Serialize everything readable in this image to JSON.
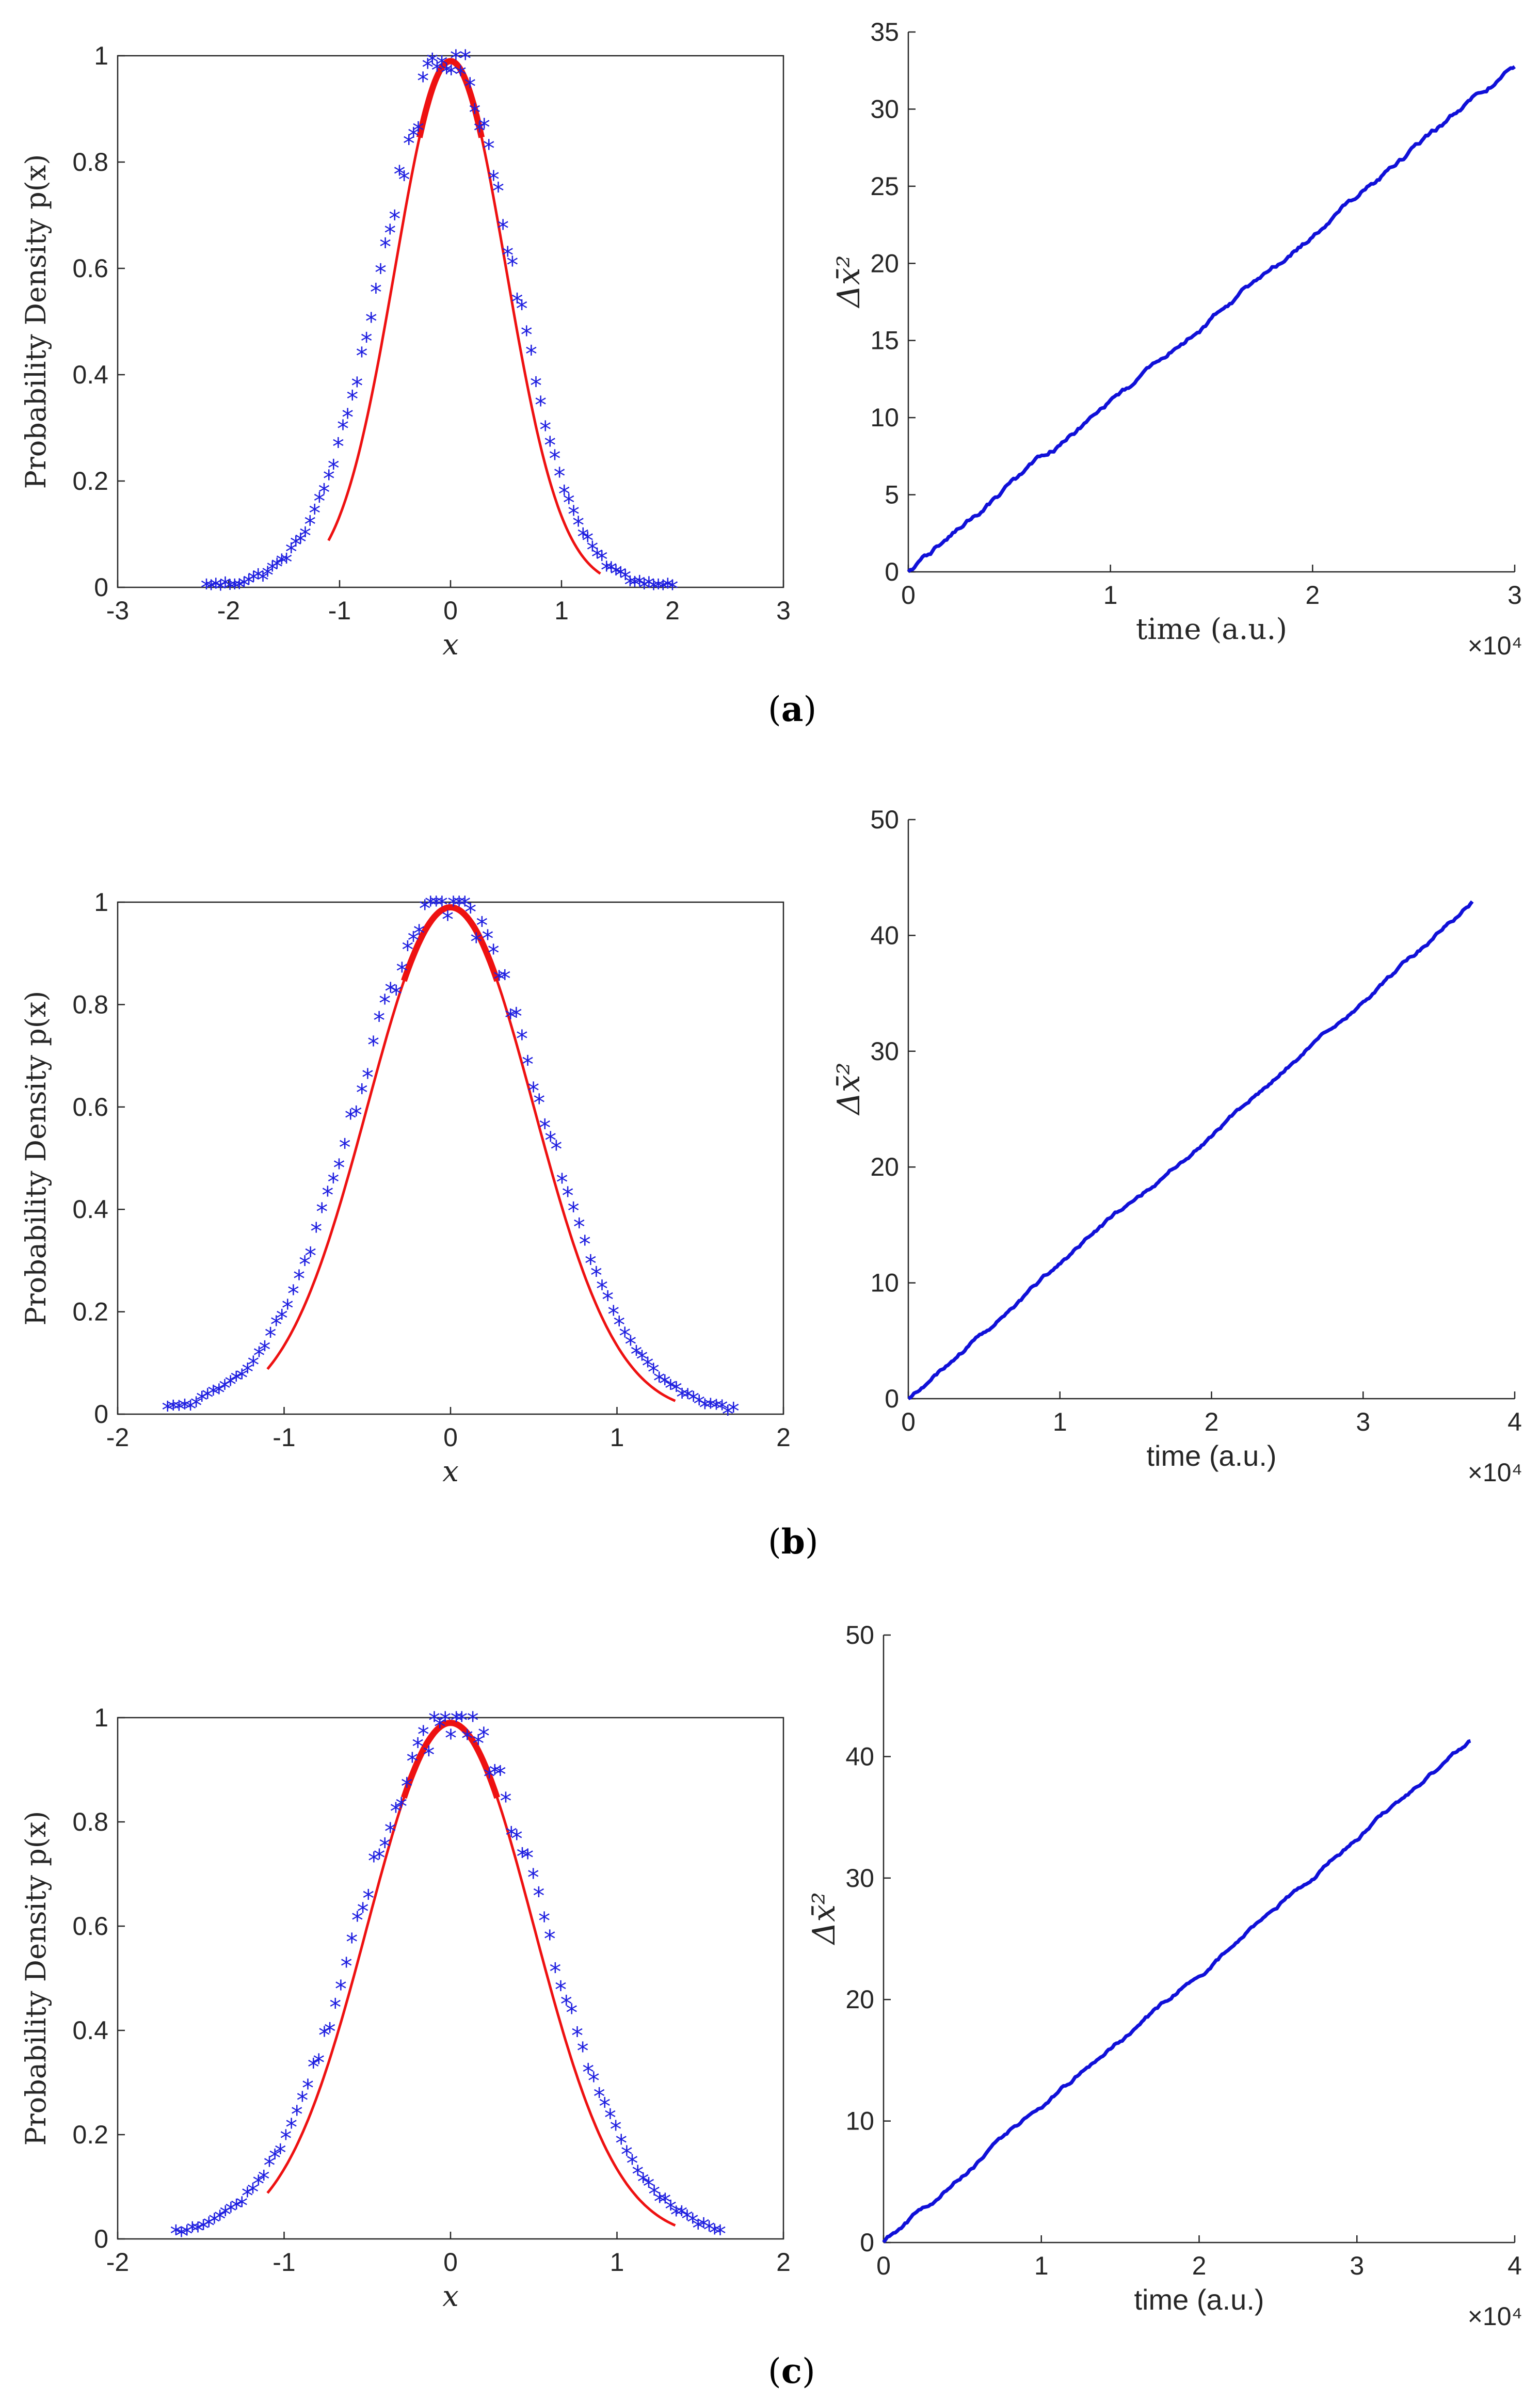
{
  "figure": {
    "captions": [
      "a",
      "b",
      "c"
    ],
    "colors": {
      "series_points": "#1f1fe0",
      "fit_curve": "#ee1111",
      "msd_line": "#1010d8",
      "axis": "#262626"
    }
  },
  "chart_data": [
    {
      "panel": "a",
      "type": "scatter",
      "title": "",
      "xlabel": "x",
      "ylabel": "Probability Density p(x)",
      "xlim": [
        -3,
        3
      ],
      "ylim": [
        0,
        1
      ],
      "xticks": [
        -3,
        -2,
        -1,
        0,
        1,
        2,
        3
      ],
      "yticks": [
        0,
        0.2,
        0.4,
        0.6,
        0.8,
        1
      ],
      "xtick_labels": [
        "-3",
        "-2",
        "-1",
        "0",
        "1",
        "2",
        "3"
      ],
      "ytick_labels": [
        "0",
        "0.2",
        "0.4",
        "0.6",
        "0.8",
        "1"
      ],
      "series": [
        {
          "name": "samples",
          "marker": "*",
          "x_range": [
            -2.2,
            2.0
          ],
          "sigma_left": 0.62,
          "sigma_right": 0.56,
          "peak": 1.0
        },
        {
          "name": "fit",
          "style": "line",
          "x_range": [
            -1.1,
            1.35
          ],
          "sigma": 0.5,
          "peak": 0.99
        }
      ]
    },
    {
      "panel": "a-right",
      "type": "line",
      "title": "",
      "xlabel": "time (a.u.)",
      "ylabel": "Δx̄²",
      "xlim": [
        0,
        3
      ],
      "ylim": [
        0,
        35
      ],
      "x_multiplier": "×10⁴",
      "xticks": [
        0,
        1,
        2,
        3
      ],
      "yticks": [
        0,
        5,
        10,
        15,
        20,
        25,
        30,
        35
      ],
      "xtick_labels": [
        "0",
        "1",
        "2",
        "3"
      ],
      "ytick_labels": [
        "0",
        "5",
        "10",
        "15",
        "20",
        "25",
        "30",
        "35"
      ],
      "series": [
        {
          "name": "msd",
          "x_end": 3.0,
          "y_end": 32.8
        }
      ]
    },
    {
      "panel": "b",
      "type": "scatter",
      "title": "",
      "xlabel": "x",
      "ylabel": "Probability Density p(x)",
      "xlim": [
        -2,
        2
      ],
      "ylim": [
        0,
        1
      ],
      "xticks": [
        -2,
        -1,
        0,
        1,
        2
      ],
      "yticks": [
        0,
        0.2,
        0.4,
        0.6,
        0.8,
        1
      ],
      "xtick_labels": [
        "-2",
        "-1",
        "0",
        "1",
        "2"
      ],
      "ytick_labels": [
        "0",
        "0.2",
        "0.4",
        "0.6",
        "0.8",
        "1"
      ],
      "series": [
        {
          "name": "samples",
          "marker": "*",
          "x_range": [
            -1.7,
            1.7
          ],
          "sigma_left": 0.56,
          "sigma_right": 0.55,
          "peak": 1.0
        },
        {
          "name": "fit",
          "style": "line",
          "x_range": [
            -1.1,
            1.35
          ],
          "sigma": 0.5,
          "peak": 0.99
        }
      ]
    },
    {
      "panel": "b-right",
      "type": "line",
      "title": "",
      "xlabel": "time (a.u.)",
      "ylabel": "Δx̄²",
      "xlim": [
        0,
        4
      ],
      "ylim": [
        0,
        50
      ],
      "x_multiplier": "×10⁴",
      "xticks": [
        0,
        1,
        2,
        3,
        4
      ],
      "yticks": [
        0,
        10,
        20,
        30,
        40,
        50
      ],
      "xtick_labels": [
        "0",
        "1",
        "2",
        "3",
        "4"
      ],
      "ytick_labels": [
        "0",
        "10",
        "20",
        "30",
        "40",
        "50"
      ],
      "series": [
        {
          "name": "msd",
          "x_end": 3.72,
          "y_end": 42.8
        }
      ]
    },
    {
      "panel": "c",
      "type": "scatter",
      "title": "",
      "xlabel": "x",
      "ylabel": "Probability Density p(x)",
      "xlim": [
        -2,
        2
      ],
      "ylim": [
        0,
        1
      ],
      "xticks": [
        -2,
        -1,
        0,
        1,
        2
      ],
      "yticks": [
        0,
        0.2,
        0.4,
        0.6,
        0.8,
        1
      ],
      "xtick_labels": [
        "-2",
        "-1",
        "0",
        "1",
        "2"
      ],
      "ytick_labels": [
        "0",
        "0.2",
        "0.4",
        "0.6",
        "0.8",
        "1"
      ],
      "series": [
        {
          "name": "samples",
          "marker": "*",
          "x_range": [
            -1.65,
            1.62
          ],
          "sigma_left": 0.55,
          "sigma_right": 0.56,
          "peak": 1.0
        },
        {
          "name": "fit",
          "style": "line",
          "x_range": [
            -1.1,
            1.35
          ],
          "sigma": 0.5,
          "peak": 0.99
        }
      ]
    },
    {
      "panel": "c-right",
      "type": "line",
      "title": "",
      "xlabel": "time (a.u.)",
      "ylabel": "Δx̄²",
      "xlim": [
        0,
        4
      ],
      "ylim": [
        0,
        50
      ],
      "x_multiplier": "×10⁴",
      "xticks": [
        0,
        1,
        2,
        3,
        4
      ],
      "yticks": [
        0,
        10,
        20,
        30,
        40,
        50
      ],
      "xtick_labels": [
        "0",
        "1",
        "2",
        "3",
        "4"
      ],
      "ytick_labels": [
        "0",
        "10",
        "20",
        "30",
        "40",
        "50"
      ],
      "series": [
        {
          "name": "msd",
          "x_end": 3.72,
          "y_end": 41.2
        }
      ]
    }
  ]
}
